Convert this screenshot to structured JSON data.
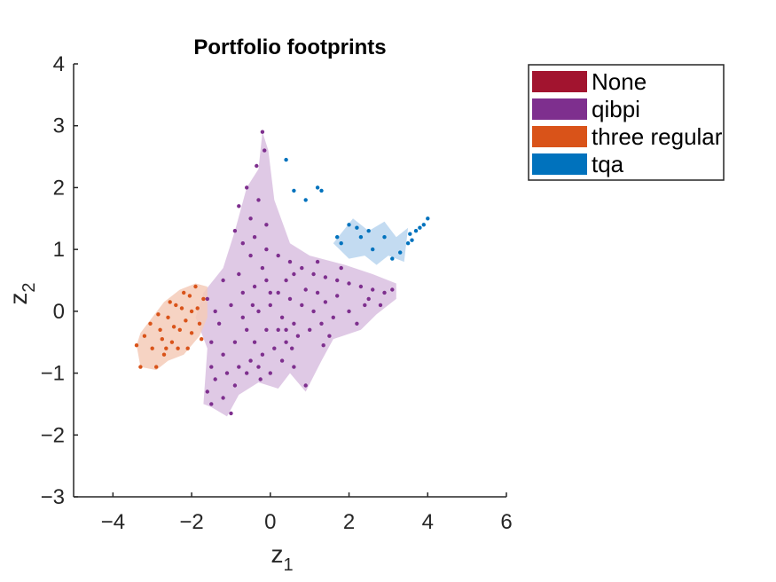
{
  "chart_data": {
    "type": "scatter",
    "title": "Portfolio footprints",
    "xlabel": {
      "main": "z",
      "sub": "1"
    },
    "ylabel": {
      "main": "z",
      "sub": "2"
    },
    "xlim": [
      -5,
      6
    ],
    "ylim": [
      -3,
      4
    ],
    "xticks": [
      -4,
      -2,
      0,
      2,
      4,
      6
    ],
    "yticks": [
      -3,
      -2,
      -1,
      0,
      1,
      2,
      3,
      4
    ],
    "grid": false,
    "legend_position": "top-right, outside plot area",
    "series": [
      {
        "name": "None",
        "color": "#A2142F",
        "footprint": [],
        "points": []
      },
      {
        "name": "qibpi",
        "color": "#7E2F8E",
        "fill_color": "#D9BFE0",
        "footprint": [
          [
            -1.7,
            -1.5
          ],
          [
            -1.6,
            -0.6
          ],
          [
            -1.9,
            -0.1
          ],
          [
            -1.7,
            0.3
          ],
          [
            -1.2,
            0.7
          ],
          [
            -0.9,
            1.3
          ],
          [
            -0.6,
            2.0
          ],
          [
            -0.3,
            2.3
          ],
          [
            -0.2,
            2.9
          ],
          [
            -0.05,
            2.6
          ],
          [
            0.1,
            1.8
          ],
          [
            0.5,
            1.1
          ],
          [
            1.0,
            0.9
          ],
          [
            1.9,
            0.75
          ],
          [
            2.6,
            0.6
          ],
          [
            3.2,
            0.45
          ],
          [
            3.2,
            0.2
          ],
          [
            2.7,
            -0.05
          ],
          [
            2.3,
            -0.3
          ],
          [
            1.6,
            -0.45
          ],
          [
            1.3,
            -0.8
          ],
          [
            0.9,
            -1.3
          ],
          [
            0.5,
            -1.0
          ],
          [
            0.2,
            -1.25
          ],
          [
            -0.3,
            -1.15
          ],
          [
            -0.8,
            -1.35
          ],
          [
            -1.1,
            -1.7
          ],
          [
            -1.5,
            -1.55
          ]
        ],
        "points": [
          [
            -0.2,
            2.9
          ],
          [
            -0.15,
            2.6
          ],
          [
            -0.35,
            2.35
          ],
          [
            -0.6,
            2.0
          ],
          [
            -0.8,
            1.7
          ],
          [
            -0.5,
            1.5
          ],
          [
            -0.3,
            1.8
          ],
          [
            -0.9,
            1.3
          ],
          [
            -0.7,
            1.1
          ],
          [
            -0.4,
            1.2
          ],
          [
            -0.1,
            1.0
          ],
          [
            0.2,
            0.9
          ],
          [
            0.5,
            0.8
          ],
          [
            0.8,
            0.7
          ],
          [
            1.1,
            0.6
          ],
          [
            1.4,
            0.55
          ],
          [
            1.7,
            0.5
          ],
          [
            2.0,
            0.45
          ],
          [
            2.3,
            0.4
          ],
          [
            2.6,
            0.35
          ],
          [
            2.9,
            0.3
          ],
          [
            3.1,
            0.35
          ],
          [
            2.8,
            0.1
          ],
          [
            2.4,
            0.1
          ],
          [
            2.0,
            0.0
          ],
          [
            1.6,
            -0.1
          ],
          [
            1.3,
            -0.2
          ],
          [
            1.0,
            -0.3
          ],
          [
            0.7,
            -0.4
          ],
          [
            0.4,
            -0.5
          ],
          [
            0.1,
            -0.6
          ],
          [
            -0.2,
            -0.7
          ],
          [
            -0.5,
            -0.8
          ],
          [
            -0.8,
            -0.9
          ],
          [
            -1.1,
            -1.0
          ],
          [
            -1.4,
            -1.1
          ],
          [
            -1.6,
            -1.3
          ],
          [
            -1.5,
            -1.5
          ],
          [
            -1.2,
            -1.4
          ],
          [
            -0.9,
            -1.2
          ],
          [
            -0.6,
            -1.0
          ],
          [
            -0.3,
            -0.9
          ],
          [
            0.0,
            -1.0
          ],
          [
            0.3,
            -0.8
          ],
          [
            0.6,
            -0.9
          ],
          [
            0.9,
            -1.2
          ],
          [
            -1.0,
            -1.65
          ],
          [
            -1.5,
            -0.5
          ],
          [
            -1.3,
            -0.2
          ],
          [
            -1.0,
            0.1
          ],
          [
            -0.7,
            0.3
          ],
          [
            -0.4,
            0.4
          ],
          [
            -0.1,
            0.5
          ],
          [
            0.2,
            0.3
          ],
          [
            0.5,
            0.2
          ],
          [
            0.8,
            0.1
          ],
          [
            1.1,
            0.0
          ],
          [
            1.4,
            0.15
          ],
          [
            1.7,
            0.25
          ],
          [
            -1.6,
            0.2
          ],
          [
            -1.2,
            0.5
          ],
          [
            -0.8,
            0.6
          ],
          [
            -0.3,
            0.0
          ],
          [
            0.0,
            0.1
          ],
          [
            0.3,
            -0.1
          ],
          [
            0.6,
            -0.2
          ],
          [
            -0.6,
            -0.3
          ],
          [
            -0.9,
            -0.5
          ],
          [
            -1.2,
            -0.7
          ],
          [
            -0.4,
            -0.5
          ],
          [
            0.2,
            -0.3
          ],
          [
            0.9,
            0.35
          ],
          [
            1.2,
            0.3
          ],
          [
            -0.2,
            0.7
          ],
          [
            -0.5,
            0.9
          ],
          [
            0.0,
            0.3
          ],
          [
            0.4,
            0.5
          ],
          [
            -0.7,
            -0.1
          ],
          [
            -0.1,
            -0.3
          ],
          [
            0.4,
            -0.3
          ],
          [
            1.5,
            -0.4
          ],
          [
            2.2,
            -0.2
          ],
          [
            2.5,
            0.2
          ],
          [
            1.8,
            0.7
          ],
          [
            1.2,
            0.8
          ],
          [
            0.6,
            0.6
          ],
          [
            -0.1,
            1.4
          ],
          [
            -0.45,
            0.1
          ],
          [
            -1.4,
            0.0
          ],
          [
            -1.5,
            -0.9
          ],
          [
            -0.25,
            -1.1
          ],
          [
            0.55,
            -0.6
          ],
          [
            1.35,
            -0.55
          ]
        ]
      },
      {
        "name": "three regular",
        "color": "#D95319",
        "fill_color": "#F4CBB8",
        "footprint": [
          [
            -3.4,
            -0.55
          ],
          [
            -3.3,
            -0.9
          ],
          [
            -2.9,
            -0.95
          ],
          [
            -2.6,
            -0.8
          ],
          [
            -2.2,
            -0.7
          ],
          [
            -1.8,
            -0.4
          ],
          [
            -1.6,
            -0.1
          ],
          [
            -1.6,
            0.4
          ],
          [
            -1.9,
            0.45
          ],
          [
            -2.3,
            0.35
          ],
          [
            -2.7,
            0.15
          ],
          [
            -3.0,
            -0.1
          ],
          [
            -3.3,
            -0.35
          ]
        ],
        "points": [
          [
            -3.4,
            -0.55
          ],
          [
            -3.3,
            -0.9
          ],
          [
            -3.2,
            -0.4
          ],
          [
            -3.0,
            -0.6
          ],
          [
            -2.9,
            -0.9
          ],
          [
            -2.8,
            -0.3
          ],
          [
            -2.7,
            -0.7
          ],
          [
            -2.6,
            -0.1
          ],
          [
            -2.5,
            -0.5
          ],
          [
            -2.4,
            0.1
          ],
          [
            -2.3,
            -0.3
          ],
          [
            -2.2,
            0.3
          ],
          [
            -2.1,
            -0.6
          ],
          [
            -2.0,
            0.0
          ],
          [
            -1.9,
            0.4
          ],
          [
            -1.8,
            -0.2
          ],
          [
            -1.7,
            0.2
          ],
          [
            -1.75,
            -0.45
          ],
          [
            -2.15,
            -0.15
          ],
          [
            -2.45,
            -0.25
          ],
          [
            -2.75,
            -0.45
          ],
          [
            -2.55,
            0.15
          ],
          [
            -2.05,
            0.25
          ],
          [
            -2.35,
            -0.6
          ],
          [
            -3.05,
            -0.2
          ],
          [
            -2.85,
            -0.05
          ],
          [
            -2.0,
            -0.35
          ],
          [
            -2.25,
            0.05
          ],
          [
            -1.85,
            0.05
          ],
          [
            -2.65,
            -0.6
          ]
        ]
      },
      {
        "name": "tqa",
        "color": "#0072BD",
        "fill_color": "#B9D5EE",
        "footprint": [
          [
            1.6,
            1.1
          ],
          [
            2.1,
            1.5
          ],
          [
            2.5,
            1.3
          ],
          [
            2.9,
            1.45
          ],
          [
            3.2,
            1.2
          ],
          [
            3.5,
            1.35
          ],
          [
            3.4,
            0.8
          ],
          [
            3.0,
            0.9
          ],
          [
            2.7,
            0.75
          ],
          [
            2.4,
            0.9
          ],
          [
            2.0,
            0.85
          ]
        ],
        "points": [
          [
            0.4,
            2.45
          ],
          [
            0.6,
            1.95
          ],
          [
            0.9,
            1.8
          ],
          [
            1.2,
            2.0
          ],
          [
            1.3,
            1.95
          ],
          [
            1.7,
            1.2
          ],
          [
            1.8,
            1.1
          ],
          [
            2.0,
            1.4
          ],
          [
            2.2,
            1.35
          ],
          [
            2.3,
            1.2
          ],
          [
            2.5,
            1.3
          ],
          [
            2.6,
            1.0
          ],
          [
            2.9,
            1.2
          ],
          [
            3.1,
            0.85
          ],
          [
            3.3,
            0.95
          ],
          [
            3.5,
            1.1
          ],
          [
            3.55,
            1.25
          ],
          [
            3.6,
            1.15
          ],
          [
            3.7,
            1.3
          ],
          [
            3.8,
            1.35
          ],
          [
            3.9,
            1.4
          ],
          [
            4.0,
            1.5
          ]
        ]
      }
    ]
  }
}
